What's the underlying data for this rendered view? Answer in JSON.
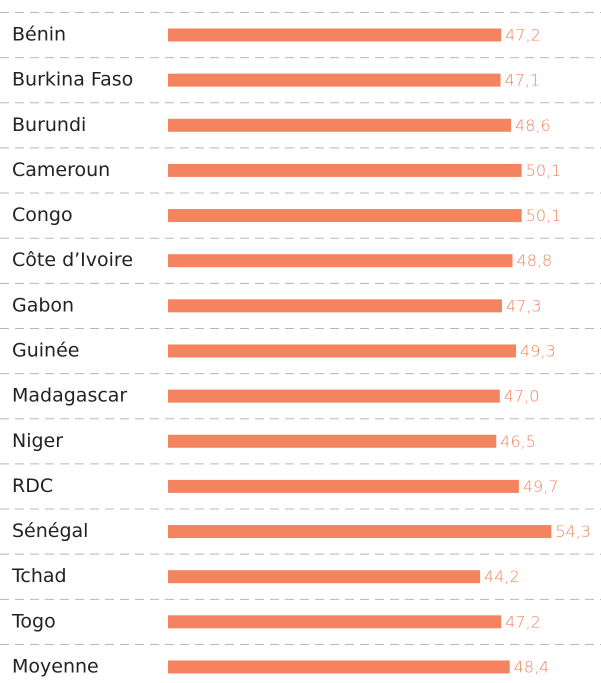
{
  "chart_data": {
    "type": "bar",
    "orientation": "horizontal",
    "categories": [
      "Bénin",
      "Burkina Faso",
      "Burundi",
      "Cameroun",
      "Congo",
      "Côte d’Ivoire",
      "Gabon",
      "Guinée",
      "Madagascar",
      "Niger",
      "RDC",
      "Sénégal",
      "Tchad",
      "Togo",
      "Moyenne"
    ],
    "values": [
      47.2,
      47.1,
      48.6,
      50.1,
      50.1,
      48.8,
      47.3,
      49.3,
      47.0,
      46.5,
      49.7,
      54.3,
      44.2,
      47.2,
      48.4
    ],
    "value_labels": [
      "47,2",
      "47,1",
      "48,6",
      "50,1",
      "50,1",
      "48,8",
      "47,3",
      "49,3",
      "47,0",
      "46,5",
      "49,7",
      "54,3",
      "44,2",
      "47,2",
      "48,4"
    ],
    "color": "#f4845f"
  }
}
